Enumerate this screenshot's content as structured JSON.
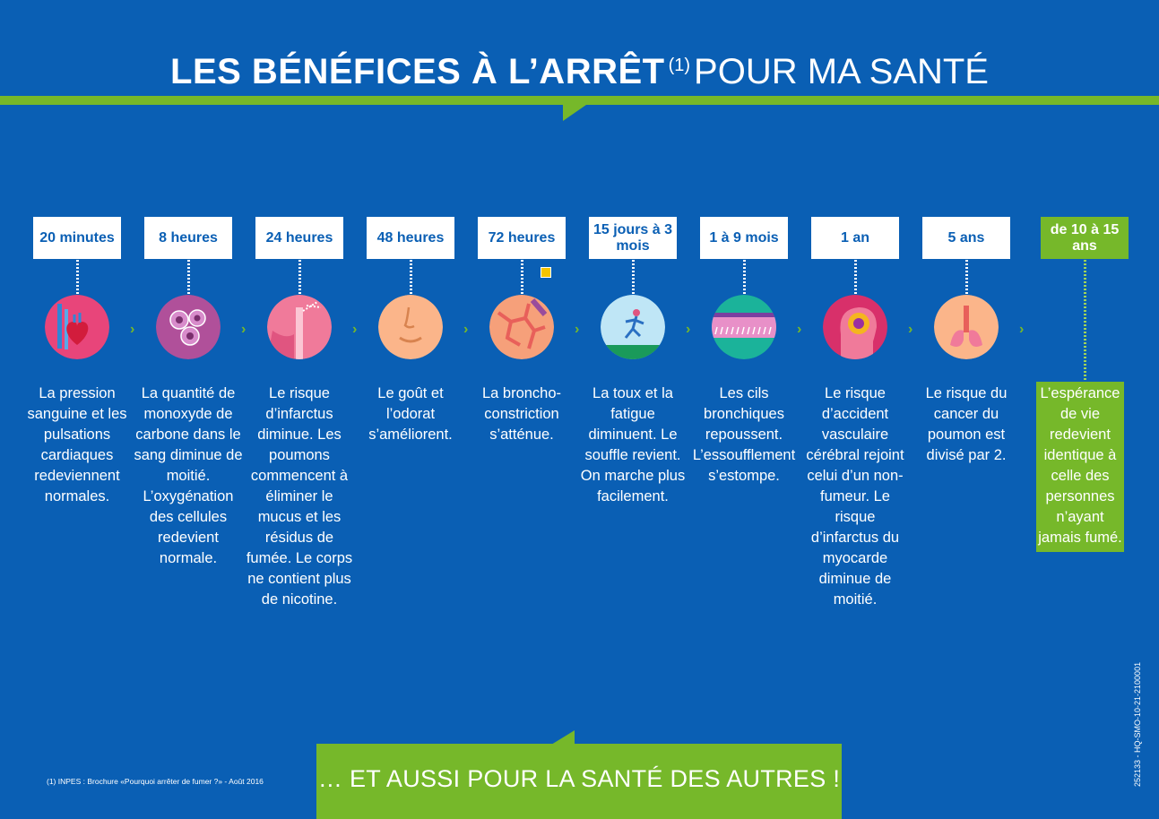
{
  "header": {
    "title_bold": "LES BÉNÉFICES À L’ARRÊT",
    "title_note": "(1)",
    "title_light": "POUR MA SANTÉ"
  },
  "steps": [
    {
      "time": "20 minutes",
      "icon": "heart-icon",
      "text": "La pression sanguine et les pulsations cardiaques redeviennent normales."
    },
    {
      "time": "8 heures",
      "icon": "blood-cells-icon",
      "text": "La quantité de monoxyde de carbone dans le sang diminue de moitié. L’oxygénation des cellules redevient normale."
    },
    {
      "time": "24 heures",
      "icon": "lungs-airway-icon",
      "text": "Le risque d’infarctus diminue. Les poumons commencent à éliminer le mucus et les résidus de fumée. Le corps ne contient plus de nicotine."
    },
    {
      "time": "48 heures",
      "icon": "face-icon",
      "text": "Le goût et l’odorat s’améliorent."
    },
    {
      "time": "72 heures",
      "icon": "bronchi-icon",
      "text": "La broncho-constriction s’atténue."
    },
    {
      "time": "15 jours à 3 mois",
      "icon": "runner-icon",
      "text": "La toux et la fatigue diminuent. Le souffle revient. On marche plus facilement."
    },
    {
      "time": "1 à 9 mois",
      "icon": "cilia-icon",
      "text": "Les cils bronchiques repoussent. L’essoufflement s’estompe."
    },
    {
      "time": "1 an",
      "icon": "brain-icon",
      "text": "Le risque d’accident vasculaire cérébral rejoint celui d’un non-fumeur. Le risque d’infarctus du myocarde diminue de moitié."
    },
    {
      "time": "5 ans",
      "icon": "chest-lungs-icon",
      "text": "Le risque du cancer du poumon est divisé par 2."
    },
    {
      "time": "de 10 à 15 ans",
      "icon": "",
      "text": "L’espérance de vie redevient identique à celle des personnes n’ayant jamais fumé."
    }
  ],
  "separator": "›",
  "footnote": "(1) INPES : Brochure «Pourquoi arrêter de fumer ?» - Août 2016",
  "bottom_banner": "… ET AUSSI POUR LA SANTÉ DES AUTRES !",
  "reference_code": "252133 - HQ-SMO-10-21-2100001",
  "colors": {
    "background": "#0a5fb4",
    "accent": "#76b82a",
    "white": "#ffffff"
  }
}
